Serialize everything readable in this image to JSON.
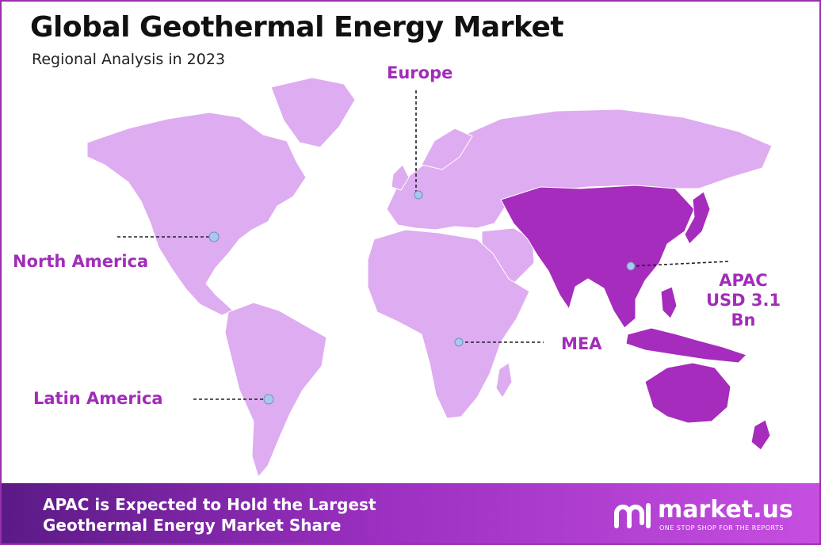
{
  "header": {
    "title": "Global Geothermal Energy Market",
    "subtitle": "Regional Analysis in 2023"
  },
  "regions": {
    "europe": {
      "name": "Europe"
    },
    "north_america": {
      "name": "North America"
    },
    "latin_america": {
      "name": "Latin America"
    },
    "mea": {
      "name": "MEA"
    },
    "apac": {
      "name": "APAC",
      "value": "USD 3.1 Bn"
    }
  },
  "colors": {
    "land": "#deacf0",
    "apac_highlight": "#a52cbc",
    "label": "#a12db8",
    "marker": "#a9c7ef",
    "banner_start": "#5b1a86",
    "banner_end": "#c64fe0"
  },
  "footer": {
    "headline_line1": "APAC is Expected to Hold the Largest",
    "headline_line2": "Geothermal Energy Market Share",
    "brand_name": "market.us",
    "brand_tagline": "ONE STOP SHOP FOR THE REPORTS",
    "brand_icon": "market-us-logo-icon"
  }
}
